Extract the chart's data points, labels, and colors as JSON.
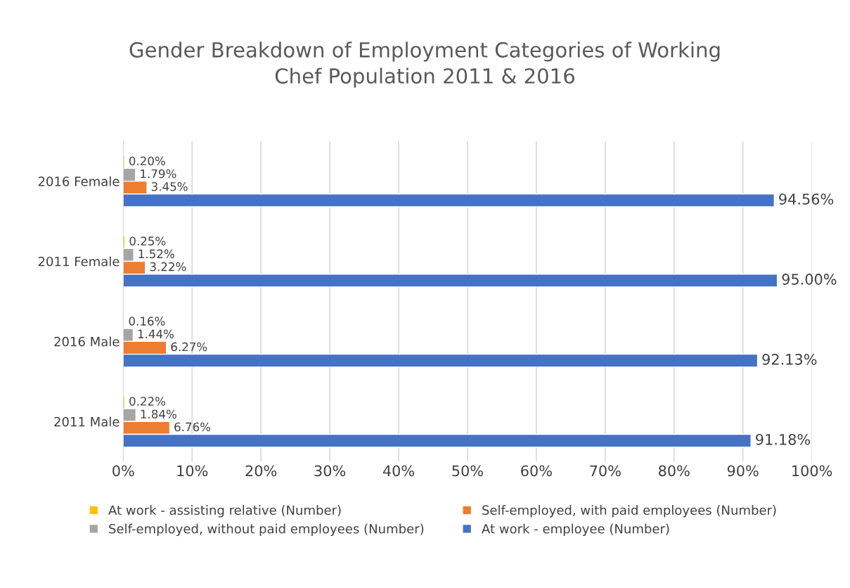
{
  "chart_data": {
    "type": "bar",
    "orientation": "horizontal",
    "title": "Gender Breakdown of Employment Categories of Working\nChef Population 2011 & 2016",
    "categories": [
      "2016 Female",
      "2011 Female",
      "2016 Male",
      "2011 Male"
    ],
    "series": [
      {
        "name": "At work - assisting relative (Number)",
        "color": "#ffc000",
        "values": [
          0.2,
          0.25,
          0.16,
          0.22
        ],
        "value_labels": [
          "0.20%",
          "0.25%",
          "0.16%",
          "0.22%"
        ]
      },
      {
        "name": "Self-employed, without paid employees (Number)",
        "color": "#a5a5a5",
        "values": [
          1.79,
          1.52,
          1.44,
          1.84
        ],
        "value_labels": [
          "1.79%",
          "1.52%",
          "1.44%",
          "1.84%"
        ]
      },
      {
        "name": "Self-employed, with paid employees (Number)",
        "color": "#ed7d31",
        "values": [
          3.45,
          3.22,
          6.27,
          6.76
        ],
        "value_labels": [
          "3.45%",
          "3.22%",
          "6.27%",
          "6.76%"
        ]
      },
      {
        "name": "At work - employee (Number)",
        "color": "#4472c4",
        "values": [
          94.56,
          95.0,
          92.13,
          91.18
        ],
        "value_labels": [
          "94.56%",
          "95.00%",
          "92.13%",
          "91.18%"
        ]
      }
    ],
    "xlim": [
      0,
      100
    ],
    "xticks": [
      {
        "value": 0,
        "label": "0%"
      },
      {
        "value": 10,
        "label": "10%"
      },
      {
        "value": 20,
        "label": "20%"
      },
      {
        "value": 30,
        "label": "30%"
      },
      {
        "value": 40,
        "label": "40%"
      },
      {
        "value": 50,
        "label": "50%"
      },
      {
        "value": 60,
        "label": "60%"
      },
      {
        "value": 70,
        "label": "70%"
      },
      {
        "value": 80,
        "label": "80%"
      },
      {
        "value": 90,
        "label": "90%"
      },
      {
        "value": 100,
        "label": "100%"
      }
    ],
    "grid": "x",
    "legend": "bottom"
  }
}
